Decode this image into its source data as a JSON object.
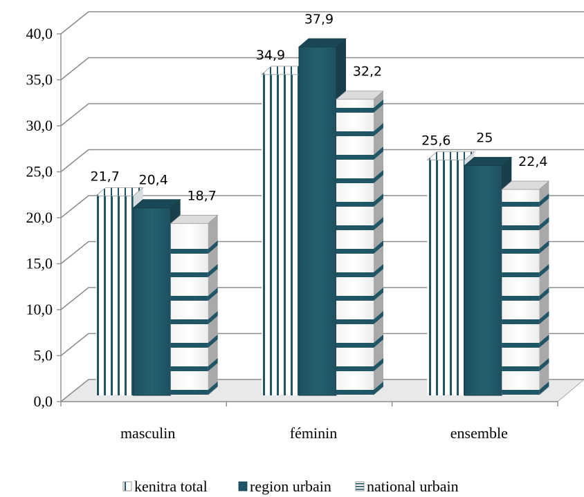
{
  "chart_data": {
    "type": "bar",
    "style": "3d-clustered-column",
    "categories": [
      "masculin",
      "féminin",
      "ensemble"
    ],
    "series": [
      {
        "name": "kenitra total",
        "values": [
          21.7,
          34.9,
          25.6
        ],
        "labels": [
          "21,7",
          "34,9",
          "25,6"
        ],
        "pattern": "vertical-stripes",
        "color": "#1f5567"
      },
      {
        "name": "region urbain",
        "values": [
          20.4,
          37.9,
          25.0
        ],
        "labels": [
          "20,4",
          "37,9",
          "25"
        ],
        "pattern": "solid",
        "color": "#1f5567"
      },
      {
        "name": "national urbain",
        "values": [
          18.7,
          32.2,
          22.4
        ],
        "labels": [
          "18,7",
          "32,2",
          "22,4"
        ],
        "pattern": "horizontal-stripes",
        "color": "#1f5567"
      }
    ],
    "yticks": [
      "0,0",
      "5,0",
      "10,0",
      "15,0",
      "20,0",
      "25,0",
      "30,0",
      "35,0",
      "40,0"
    ],
    "ylim": [
      0,
      40
    ],
    "grid": true,
    "legend": "bottom"
  }
}
